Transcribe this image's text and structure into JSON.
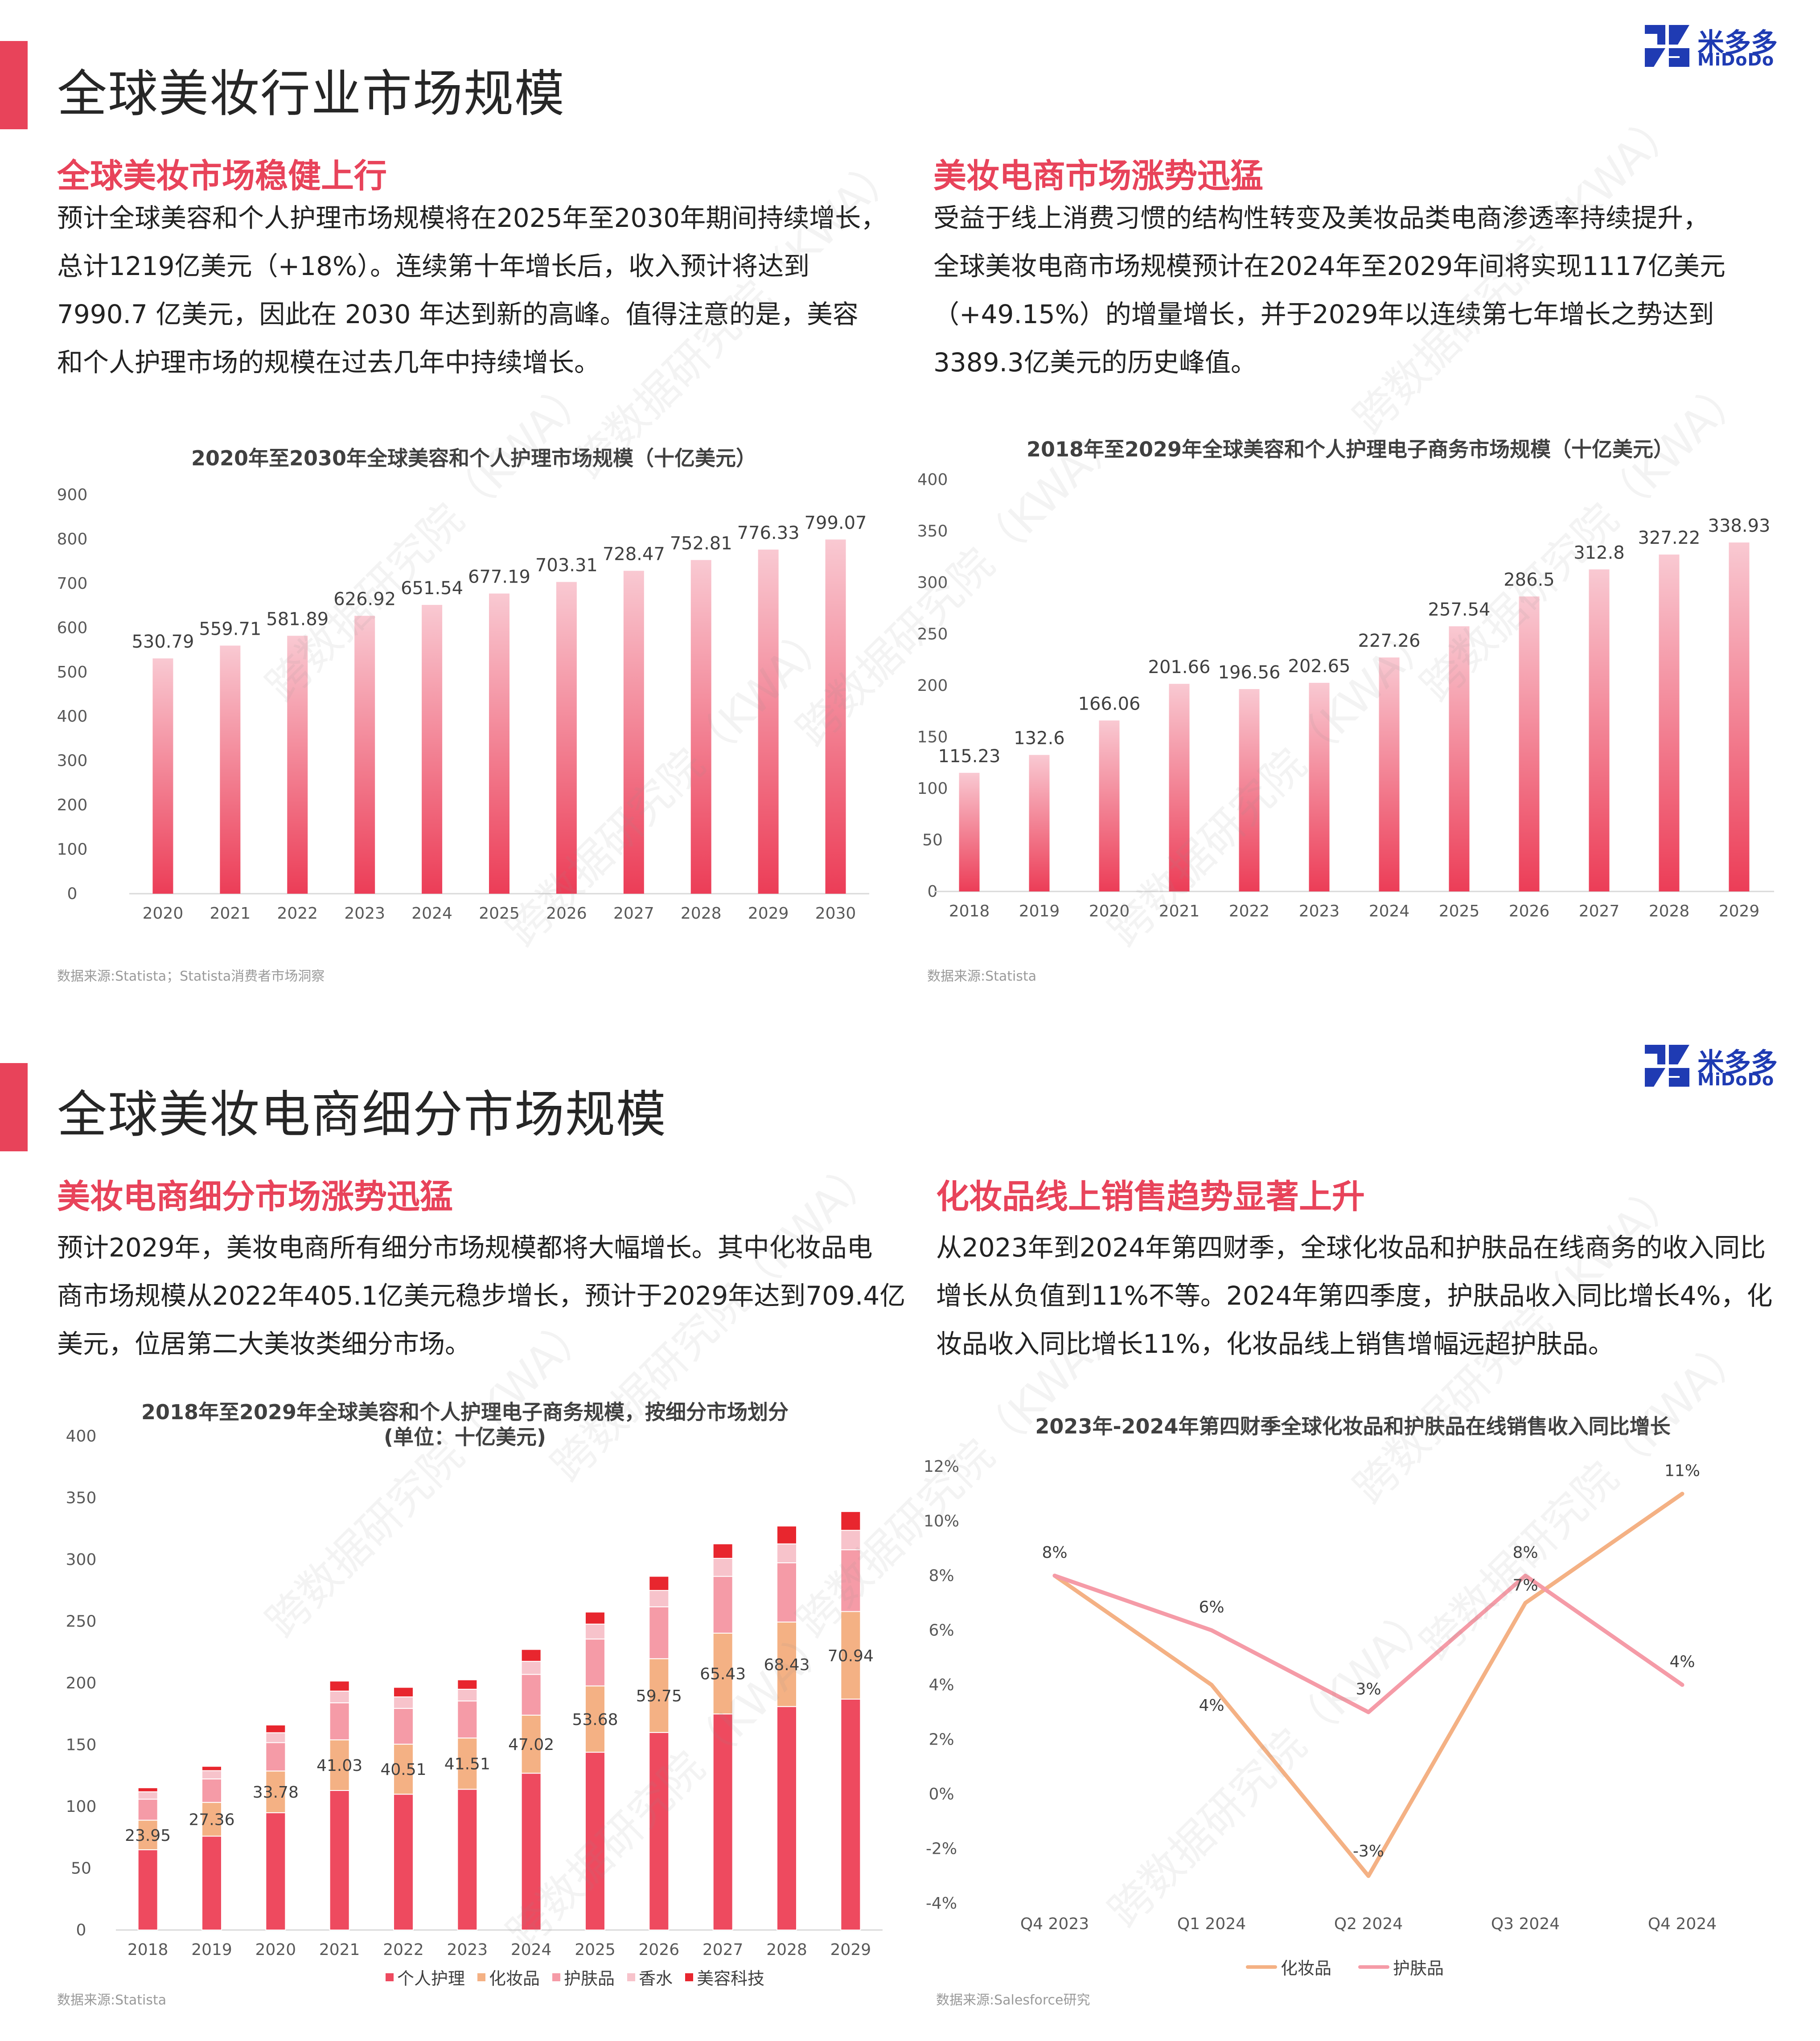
{
  "section1": {
    "title": "全球美妆行业市场规模",
    "left": {
      "subtitle": "全球美妆市场稳健上行",
      "paragraph": [
        "预计全球美容和个人护理市场规模将在2025年至2030年期间持续增长，",
        "总计1219亿美元（+18%）。连续第十年增长后，收入预计将达到",
        "7990.7 亿美元，因此在 2030 年达到新的高峰。值得注意的是，美容",
        "和个人护理市场的规模在过去几年中持续增长。"
      ],
      "source": "数据来源:Statista；Statista消费者市场洞察"
    },
    "right": {
      "subtitle": "美妆电商市场涨势迅猛",
      "paragraph": [
        "受益于线上消费习惯的结构性转变及美妆品类电商渗透率持续提升，",
        "全球美妆电商市场规模预计在2024年至2029年间将实现1117亿美元",
        "（+49.15%）的增量增长，并于2029年以连续第七年增长之势达到",
        "3389.3亿美元的历史峰值。"
      ],
      "source": "数据来源:Statista"
    }
  },
  "section2": {
    "title": "全球美妆电商细分市场规模",
    "left": {
      "subtitle": "美妆电商细分市场涨势迅猛",
      "paragraph": [
        "预计2029年，美妆电商所有细分市场规模都将大幅增长。其中化妆品电",
        "商市场规模从2022年405.1亿美元稳步增长，预计于2029年达到709.4亿",
        "美元，位居第二大美妆类细分市场。"
      ],
      "source": "数据来源:Statista"
    },
    "right": {
      "subtitle": "化妆品线上销售趋势显著上升",
      "paragraph": [
        "从2023年到2024年第四财季，全球化妆品和护肤品在线商务的收入同比",
        "增长从负值到11%不等。2024年第四季度，护肤品收入同比增长4%，化",
        "妆品收入同比增长11%，化妆品线上销售增幅远超护肤品。"
      ],
      "source": "数据来源:Salesforce研究"
    }
  },
  "logo": {
    "cn": "米多多",
    "en": "MiDoDo",
    "icon": "midodo-logo-icon"
  },
  "watermark": {
    "text": "跨数据研究院（KWA）"
  },
  "colors": {
    "accent": "#e8435a",
    "personal_care": "#ee4a5f",
    "cosmetics": "#f4b184",
    "skincare": "#f59ba7",
    "fragrance": "#f7c3cb",
    "beauty_tech": "#e8262e",
    "line_cosmetics": "#f4b184",
    "line_skincare": "#f59ba7",
    "logo_blue": "#1f3bb3"
  },
  "chart_data": [
    {
      "type": "bar",
      "title": "2020年至2030年全球美容和个人护理市场规模（十亿美元）",
      "categories": [
        "2020",
        "2021",
        "2022",
        "2023",
        "2024",
        "2025",
        "2026",
        "2027",
        "2028",
        "2029",
        "2030"
      ],
      "values": [
        530.79,
        559.71,
        581.89,
        626.92,
        651.54,
        677.19,
        703.31,
        728.47,
        752.81,
        776.33,
        799.07
      ],
      "data_labels": [
        "530.79",
        "559.71",
        "581.89",
        "626.92",
        "651.54",
        "677.19",
        "703.31",
        "728.47",
        "752.81",
        "776.33",
        "799.07"
      ],
      "ylim": [
        0,
        900
      ],
      "yticks": [
        "0",
        "100",
        "200",
        "300",
        "400",
        "500",
        "600",
        "700",
        "800",
        "900"
      ],
      "gradient": true,
      "grid": false
    },
    {
      "type": "bar",
      "title": "2018年至2029年全球美容和个人护理电子商务市场规模（十亿美元）",
      "categories": [
        "2018",
        "2019",
        "2020",
        "2021",
        "2022",
        "2023",
        "2024",
        "2025",
        "2026",
        "2027",
        "2028",
        "2029"
      ],
      "values": [
        115.23,
        132.6,
        166.06,
        201.66,
        196.56,
        202.65,
        227.26,
        257.54,
        286.5,
        312.8,
        327.22,
        338.93
      ],
      "data_labels": [
        "115.23",
        "132.6",
        "166.06",
        "201.66",
        "196.56",
        "202.65",
        "227.26",
        "257.54",
        "286.5",
        "312.8",
        "327.22",
        "338.93"
      ],
      "ylim": [
        0,
        400
      ],
      "yticks": [
        "0",
        "50",
        "100",
        "150",
        "200",
        "250",
        "300",
        "350",
        "400"
      ],
      "gradient": true,
      "grid": false
    },
    {
      "type": "bar",
      "stacked": true,
      "title": "2018年至2029年全球美容和个人护理电子商务规模，按细分市场划分",
      "subtitle": "(单位：十亿美元)",
      "categories": [
        "2018",
        "2019",
        "2020",
        "2021",
        "2022",
        "2023",
        "2024",
        "2025",
        "2026",
        "2027",
        "2028",
        "2029"
      ],
      "ylim": [
        0,
        400
      ],
      "yticks": [
        "0",
        "50",
        "100",
        "150",
        "200",
        "250",
        "300",
        "350",
        "400"
      ],
      "legend_position": "bottom",
      "series": [
        {
          "name": "个人护理",
          "values": [
            65,
            76,
            95,
            113,
            110,
            114,
            127,
            144,
            160,
            175,
            181,
            187
          ]
        },
        {
          "name": "化妆品",
          "values": [
            23.95,
            27.36,
            33.78,
            41.03,
            40.51,
            41.51,
            47.02,
            53.68,
            59.75,
            65.43,
            68.43,
            70.94
          ],
          "data_labels": [
            "23.95",
            "27.36",
            "33.78",
            "41.03",
            "40.51",
            "41.51",
            "47.02",
            "53.68",
            "59.75",
            "65.43",
            "68.43",
            "70.94"
          ]
        },
        {
          "name": "护肤品",
          "values": [
            17,
            19,
            23,
            30,
            29,
            30,
            33,
            38,
            42,
            46,
            48,
            50
          ]
        },
        {
          "name": "香水",
          "values": [
            6,
            6.7,
            8,
            9.5,
            9.3,
            9.5,
            10.6,
            12.1,
            13.3,
            14.6,
            15.3,
            15.8
          ]
        },
        {
          "name": "美容科技",
          "values": [
            3.28,
            3.54,
            6.28,
            8.13,
            7.75,
            7.64,
            9.64,
            9.76,
            11.45,
            11.77,
            14.49,
            15.19
          ]
        }
      ]
    },
    {
      "type": "line",
      "title": "2023年-2024年第四财季全球化妆品和护肤品在线销售收入同比增长",
      "categories": [
        "Q4 2023",
        "Q1 2024",
        "Q2 2024",
        "Q3 2024",
        "Q4 2024"
      ],
      "ylim": [
        -4,
        12
      ],
      "yticks": [
        "-4%",
        "-2%",
        "0%",
        "2%",
        "4%",
        "6%",
        "8%",
        "10%",
        "12%"
      ],
      "legend_position": "bottom",
      "grid": false,
      "series": [
        {
          "name": "化妆品",
          "values": [
            8,
            4,
            -3,
            7,
            11
          ],
          "data_labels": [
            "8%",
            "4%",
            "-3%",
            "7%",
            "11%"
          ]
        },
        {
          "name": "护肤品",
          "values": [
            8,
            6,
            3,
            8,
            4
          ],
          "data_labels": [
            "8%",
            "6%",
            "3%",
            "8%",
            "4%"
          ]
        }
      ]
    }
  ]
}
